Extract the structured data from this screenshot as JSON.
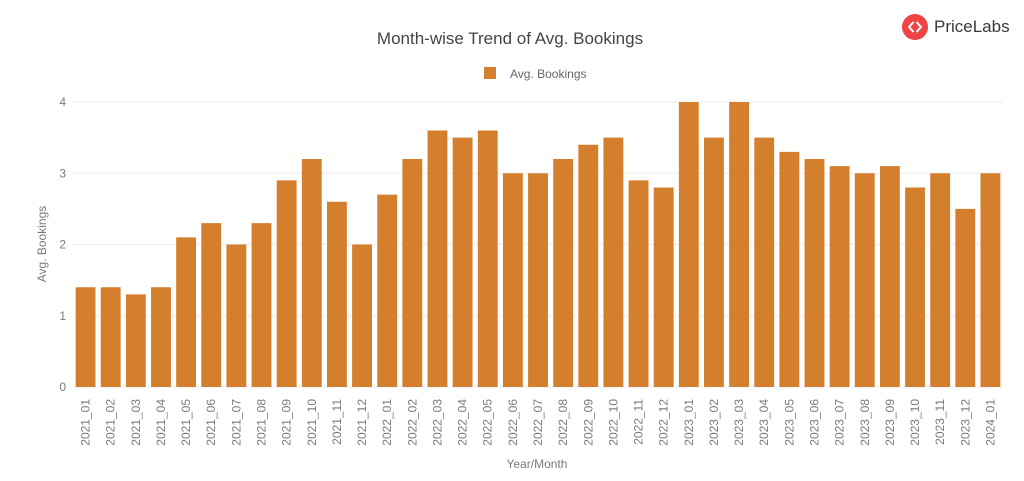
{
  "brand": {
    "name": "PriceLabs",
    "color": "#ef4444"
  },
  "chart_data": {
    "type": "bar",
    "title": "Month-wise Trend of Avg. Bookings",
    "xlabel": "Year/Month",
    "ylabel": "Avg. Bookings",
    "ylim": [
      0,
      4
    ],
    "yticks": [
      0,
      1,
      2,
      3,
      4
    ],
    "grid": true,
    "legend_position": "top-center",
    "bar_color": "#d37f2e",
    "categories": [
      "2021_01",
      "2021_02",
      "2021_03",
      "2021_04",
      "2021_05",
      "2021_06",
      "2021_07",
      "2021_08",
      "2021_09",
      "2021_10",
      "2021_11",
      "2021_12",
      "2022_01",
      "2022_02",
      "2022_03",
      "2022_04",
      "2022_05",
      "2022_06",
      "2022_07",
      "2022_08",
      "2022_09",
      "2022_10",
      "2022_11",
      "2022_12",
      "2023_01",
      "2023_02",
      "2023_03",
      "2023_04",
      "2023_05",
      "2023_06",
      "2023_07",
      "2023_08",
      "2023_09",
      "2023_10",
      "2023_11",
      "2023_12",
      "2024_01"
    ],
    "series": [
      {
        "name": "Avg. Bookings",
        "values": [
          1.4,
          1.4,
          1.3,
          1.4,
          2.1,
          2.3,
          2.0,
          2.3,
          2.9,
          3.2,
          2.6,
          2.0,
          2.7,
          3.2,
          3.6,
          3.5,
          3.6,
          3.0,
          3.0,
          3.2,
          3.4,
          3.5,
          2.9,
          2.8,
          4.0,
          3.5,
          4.0,
          3.5,
          3.3,
          3.2,
          3.1,
          3.0,
          3.1,
          2.8,
          3.0,
          2.5,
          3.0
        ]
      }
    ]
  }
}
